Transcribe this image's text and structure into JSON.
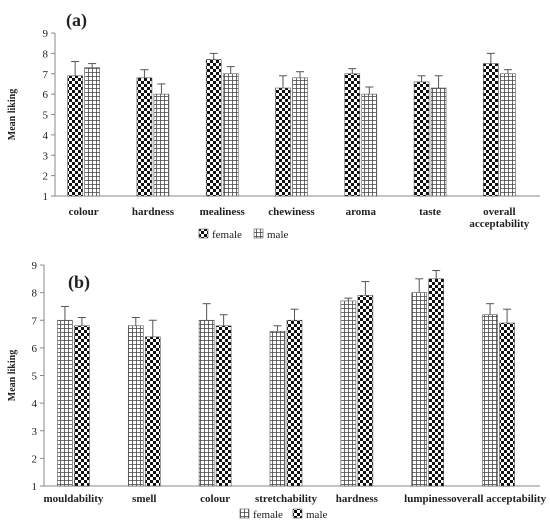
{
  "chart_data": [
    {
      "type": "bar",
      "panel_label": "(a)",
      "ylabel": "Mean liking",
      "ylim": [
        1,
        9
      ],
      "yticks": [
        "1",
        "2",
        "3",
        "4",
        "5",
        "6",
        "7",
        "8",
        "9"
      ],
      "categories": [
        [
          "colour"
        ],
        [
          "hardness"
        ],
        [
          "mealiness"
        ],
        [
          "chewiness"
        ],
        [
          "aroma"
        ],
        [
          "taste"
        ],
        [
          "overall",
          "acceptability"
        ]
      ],
      "series": [
        {
          "name": "female",
          "pattern": "checker",
          "values": [
            6.9,
            6.8,
            7.7,
            6.3,
            7.0,
            6.6,
            7.5
          ],
          "errors": [
            0.7,
            0.4,
            0.3,
            0.6,
            0.25,
            0.3,
            0.5
          ]
        },
        {
          "name": "male",
          "pattern": "grid",
          "values": [
            7.3,
            6.0,
            7.0,
            6.8,
            6.0,
            6.3,
            7.0
          ],
          "errors": [
            0.2,
            0.5,
            0.35,
            0.3,
            0.35,
            0.6,
            0.2
          ]
        }
      ],
      "legend": {
        "position": "bottom"
      }
    },
    {
      "type": "bar",
      "panel_label": "(b)",
      "ylabel": "Mean liking",
      "ylim": [
        1,
        9
      ],
      "yticks": [
        "1",
        "2",
        "3",
        "4",
        "5",
        "6",
        "7",
        "8",
        "9"
      ],
      "categories": [
        [
          "mouldability"
        ],
        [
          "smell"
        ],
        [
          "colour"
        ],
        [
          "stretchability"
        ],
        [
          "hardness"
        ],
        [
          "lumpiness"
        ],
        [
          "overall acceptability"
        ]
      ],
      "series": [
        {
          "name": "female",
          "pattern": "grid",
          "values": [
            7.0,
            6.8,
            7.0,
            6.6,
            7.7,
            8.0,
            7.2
          ],
          "errors": [
            0.5,
            0.3,
            0.6,
            0.2,
            0.1,
            0.5,
            0.4
          ]
        },
        {
          "name": "male",
          "pattern": "checker",
          "values": [
            6.8,
            6.4,
            6.8,
            7.0,
            7.9,
            8.5,
            6.9
          ],
          "errors": [
            0.3,
            0.6,
            0.4,
            0.4,
            0.5,
            0.3,
            0.5
          ]
        }
      ],
      "legend": {
        "position": "bottom"
      }
    }
  ]
}
